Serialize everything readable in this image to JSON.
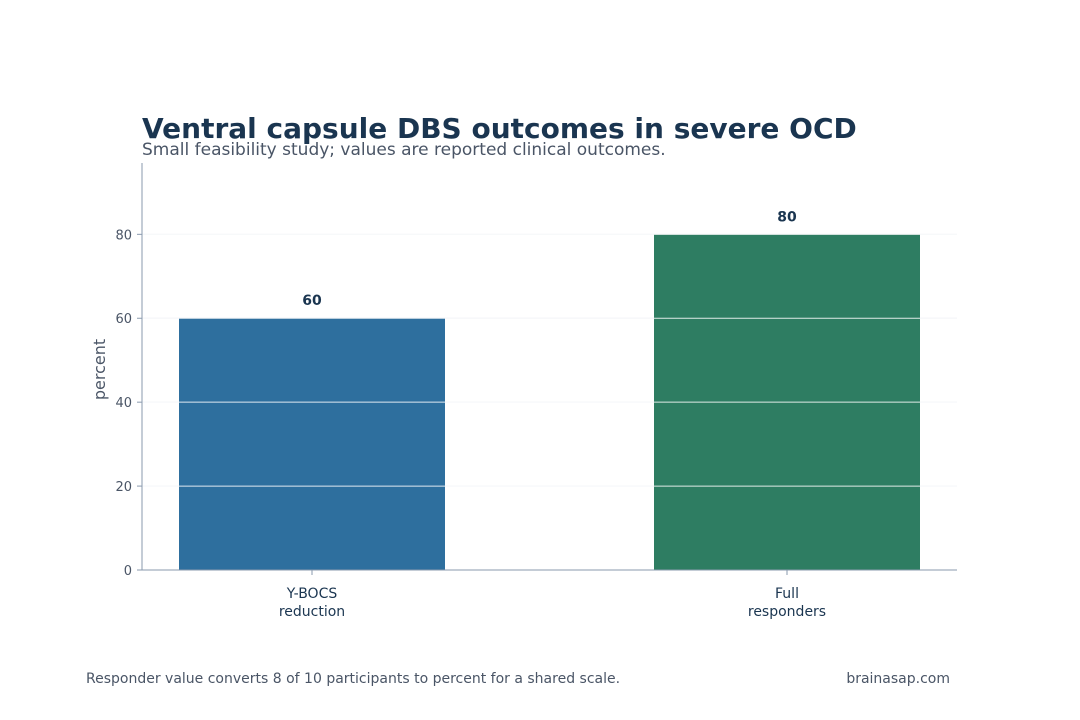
{
  "title": "Ventral capsule DBS outcomes in severe OCD",
  "subtitle": "Small feasibility study; values are reported clinical outcomes.",
  "footnote": "Responder value converts 8 of 10 participants to percent for a shared scale.",
  "source": "brainasap.com",
  "colors": {
    "bar_1": "#2e6f9e",
    "bar_2": "#2e7d62",
    "grid": "#d9e0ea",
    "axis": "#8a9aae",
    "title": "#1a3550",
    "muted": "#4a5566"
  },
  "chart_data": {
    "type": "bar",
    "categories": [
      [
        "Y-BOCS",
        "reduction"
      ],
      [
        "Full",
        "responders"
      ]
    ],
    "values": [
      60,
      80
    ],
    "data_labels": [
      "60",
      "80"
    ],
    "ylabel": "percent",
    "xlabel": "",
    "ylim": [
      0,
      97
    ],
    "yticks": [
      0,
      20,
      40,
      60,
      80
    ],
    "ytick_labels": [
      "0",
      "20",
      "40",
      "60",
      "80"
    ],
    "grid": true
  }
}
